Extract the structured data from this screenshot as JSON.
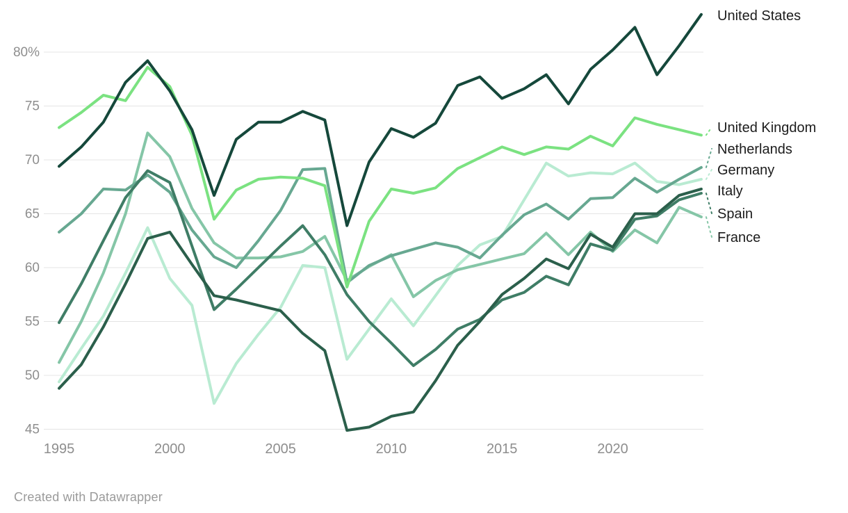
{
  "footer": {
    "credit": "Created with Datawrapper"
  },
  "chart_data": {
    "type": "line",
    "title": "",
    "xlabel": "",
    "ylabel": "",
    "unit": "%",
    "grid": "horizontal",
    "legend_position": "right-edge-direct-labels",
    "x": [
      1995,
      1996,
      1997,
      1998,
      1999,
      2000,
      2001,
      2002,
      2003,
      2004,
      2005,
      2006,
      2007,
      2008,
      2009,
      2010,
      2011,
      2012,
      2013,
      2014,
      2015,
      2016,
      2017,
      2018,
      2019,
      2020,
      2021,
      2022,
      2023,
      2024
    ],
    "x_ticks": [
      "1995",
      "2000",
      "2005",
      "2010",
      "2015",
      "2020"
    ],
    "x_tick_values": [
      1995,
      2000,
      2005,
      2010,
      2015,
      2020
    ],
    "ylim": [
      44,
      85
    ],
    "y_tick_values": [
      45,
      50,
      55,
      60,
      65,
      70,
      75,
      80
    ],
    "y_tick_labels": [
      "45",
      "50",
      "55",
      "60",
      "65",
      "70",
      "75",
      "80%"
    ],
    "colors": {
      "grid": "#e4e4e4",
      "tick_text": "#8e8e8e",
      "label_text": "#1c1c1c",
      "background": "#ffffff"
    },
    "series": [
      {
        "id": "de",
        "name": "Germany",
        "color": "#b9ebd2",
        "values": [
          49.4,
          52.5,
          55.5,
          59.5,
          63.7,
          59.0,
          56.5,
          47.4,
          51.1,
          53.8,
          56.3,
          60.2,
          60.0,
          51.5,
          54.3,
          57.1,
          54.6,
          57.4,
          60.2,
          62.1,
          62.9,
          66.3,
          69.7,
          68.5,
          68.8,
          68.7,
          69.7,
          68.0,
          67.7,
          68.2
        ]
      },
      {
        "id": "fr",
        "name": "France",
        "color": "#85c6a7",
        "values": [
          51.2,
          55.0,
          59.5,
          65.0,
          72.5,
          70.3,
          65.5,
          62.3,
          60.9,
          60.9,
          61.0,
          61.5,
          62.9,
          58.8,
          60.1,
          61.2,
          57.3,
          58.8,
          59.8,
          60.3,
          60.8,
          61.3,
          63.2,
          61.2,
          63.3,
          61.5,
          63.5,
          62.3,
          65.6,
          64.7
        ]
      },
      {
        "id": "nl",
        "name": "Netherlands",
        "color": "#67a891",
        "values": [
          63.3,
          65.0,
          67.3,
          67.2,
          68.6,
          67.0,
          63.5,
          61.0,
          60.0,
          62.5,
          65.3,
          69.1,
          69.2,
          58.6,
          60.2,
          61.1,
          61.7,
          62.3,
          61.9,
          60.9,
          63.0,
          64.9,
          65.9,
          64.5,
          66.4,
          66.5,
          68.3,
          67.0,
          68.2,
          69.3
        ]
      },
      {
        "id": "es",
        "name": "Spain",
        "color": "#3f7d66",
        "values": [
          54.9,
          58.5,
          62.5,
          66.5,
          69.0,
          67.9,
          62.0,
          56.1,
          58.0,
          60.0,
          62.0,
          63.9,
          61.2,
          57.5,
          55.0,
          53.0,
          50.9,
          52.4,
          54.3,
          55.2,
          57.0,
          57.7,
          59.2,
          58.4,
          62.2,
          61.6,
          64.5,
          64.8,
          66.3,
          66.9
        ]
      },
      {
        "id": "it",
        "name": "Italy",
        "color": "#2b5f4b",
        "values": [
          48.8,
          51.0,
          54.5,
          58.5,
          62.7,
          63.3,
          60.3,
          57.4,
          57.0,
          56.5,
          56.0,
          53.9,
          52.3,
          44.9,
          45.2,
          46.2,
          46.6,
          49.5,
          52.8,
          55.0,
          57.5,
          59.0,
          60.8,
          59.9,
          63.1,
          61.9,
          65.0,
          65.0,
          66.7,
          67.3
        ]
      },
      {
        "id": "uk",
        "name": "United Kingdom",
        "color": "#7be281",
        "values": [
          73.0,
          74.4,
          76.0,
          75.5,
          78.6,
          76.8,
          72.3,
          64.5,
          67.2,
          68.2,
          68.4,
          68.3,
          67.6,
          58.2,
          64.3,
          67.3,
          66.9,
          67.4,
          69.2,
          70.2,
          71.2,
          70.5,
          71.2,
          71.0,
          72.2,
          71.3,
          73.9,
          73.3,
          72.8,
          72.3
        ]
      },
      {
        "id": "us",
        "name": "United States",
        "color": "#15483b",
        "values": [
          69.4,
          71.2,
          73.5,
          77.2,
          79.2,
          76.4,
          72.8,
          66.7,
          71.9,
          73.5,
          73.5,
          74.5,
          73.7,
          63.9,
          69.8,
          72.9,
          72.1,
          73.4,
          76.9,
          77.7,
          75.7,
          76.6,
          77.9,
          75.2,
          78.4,
          80.2,
          82.3,
          77.9,
          80.6,
          83.5
        ]
      }
    ]
  }
}
